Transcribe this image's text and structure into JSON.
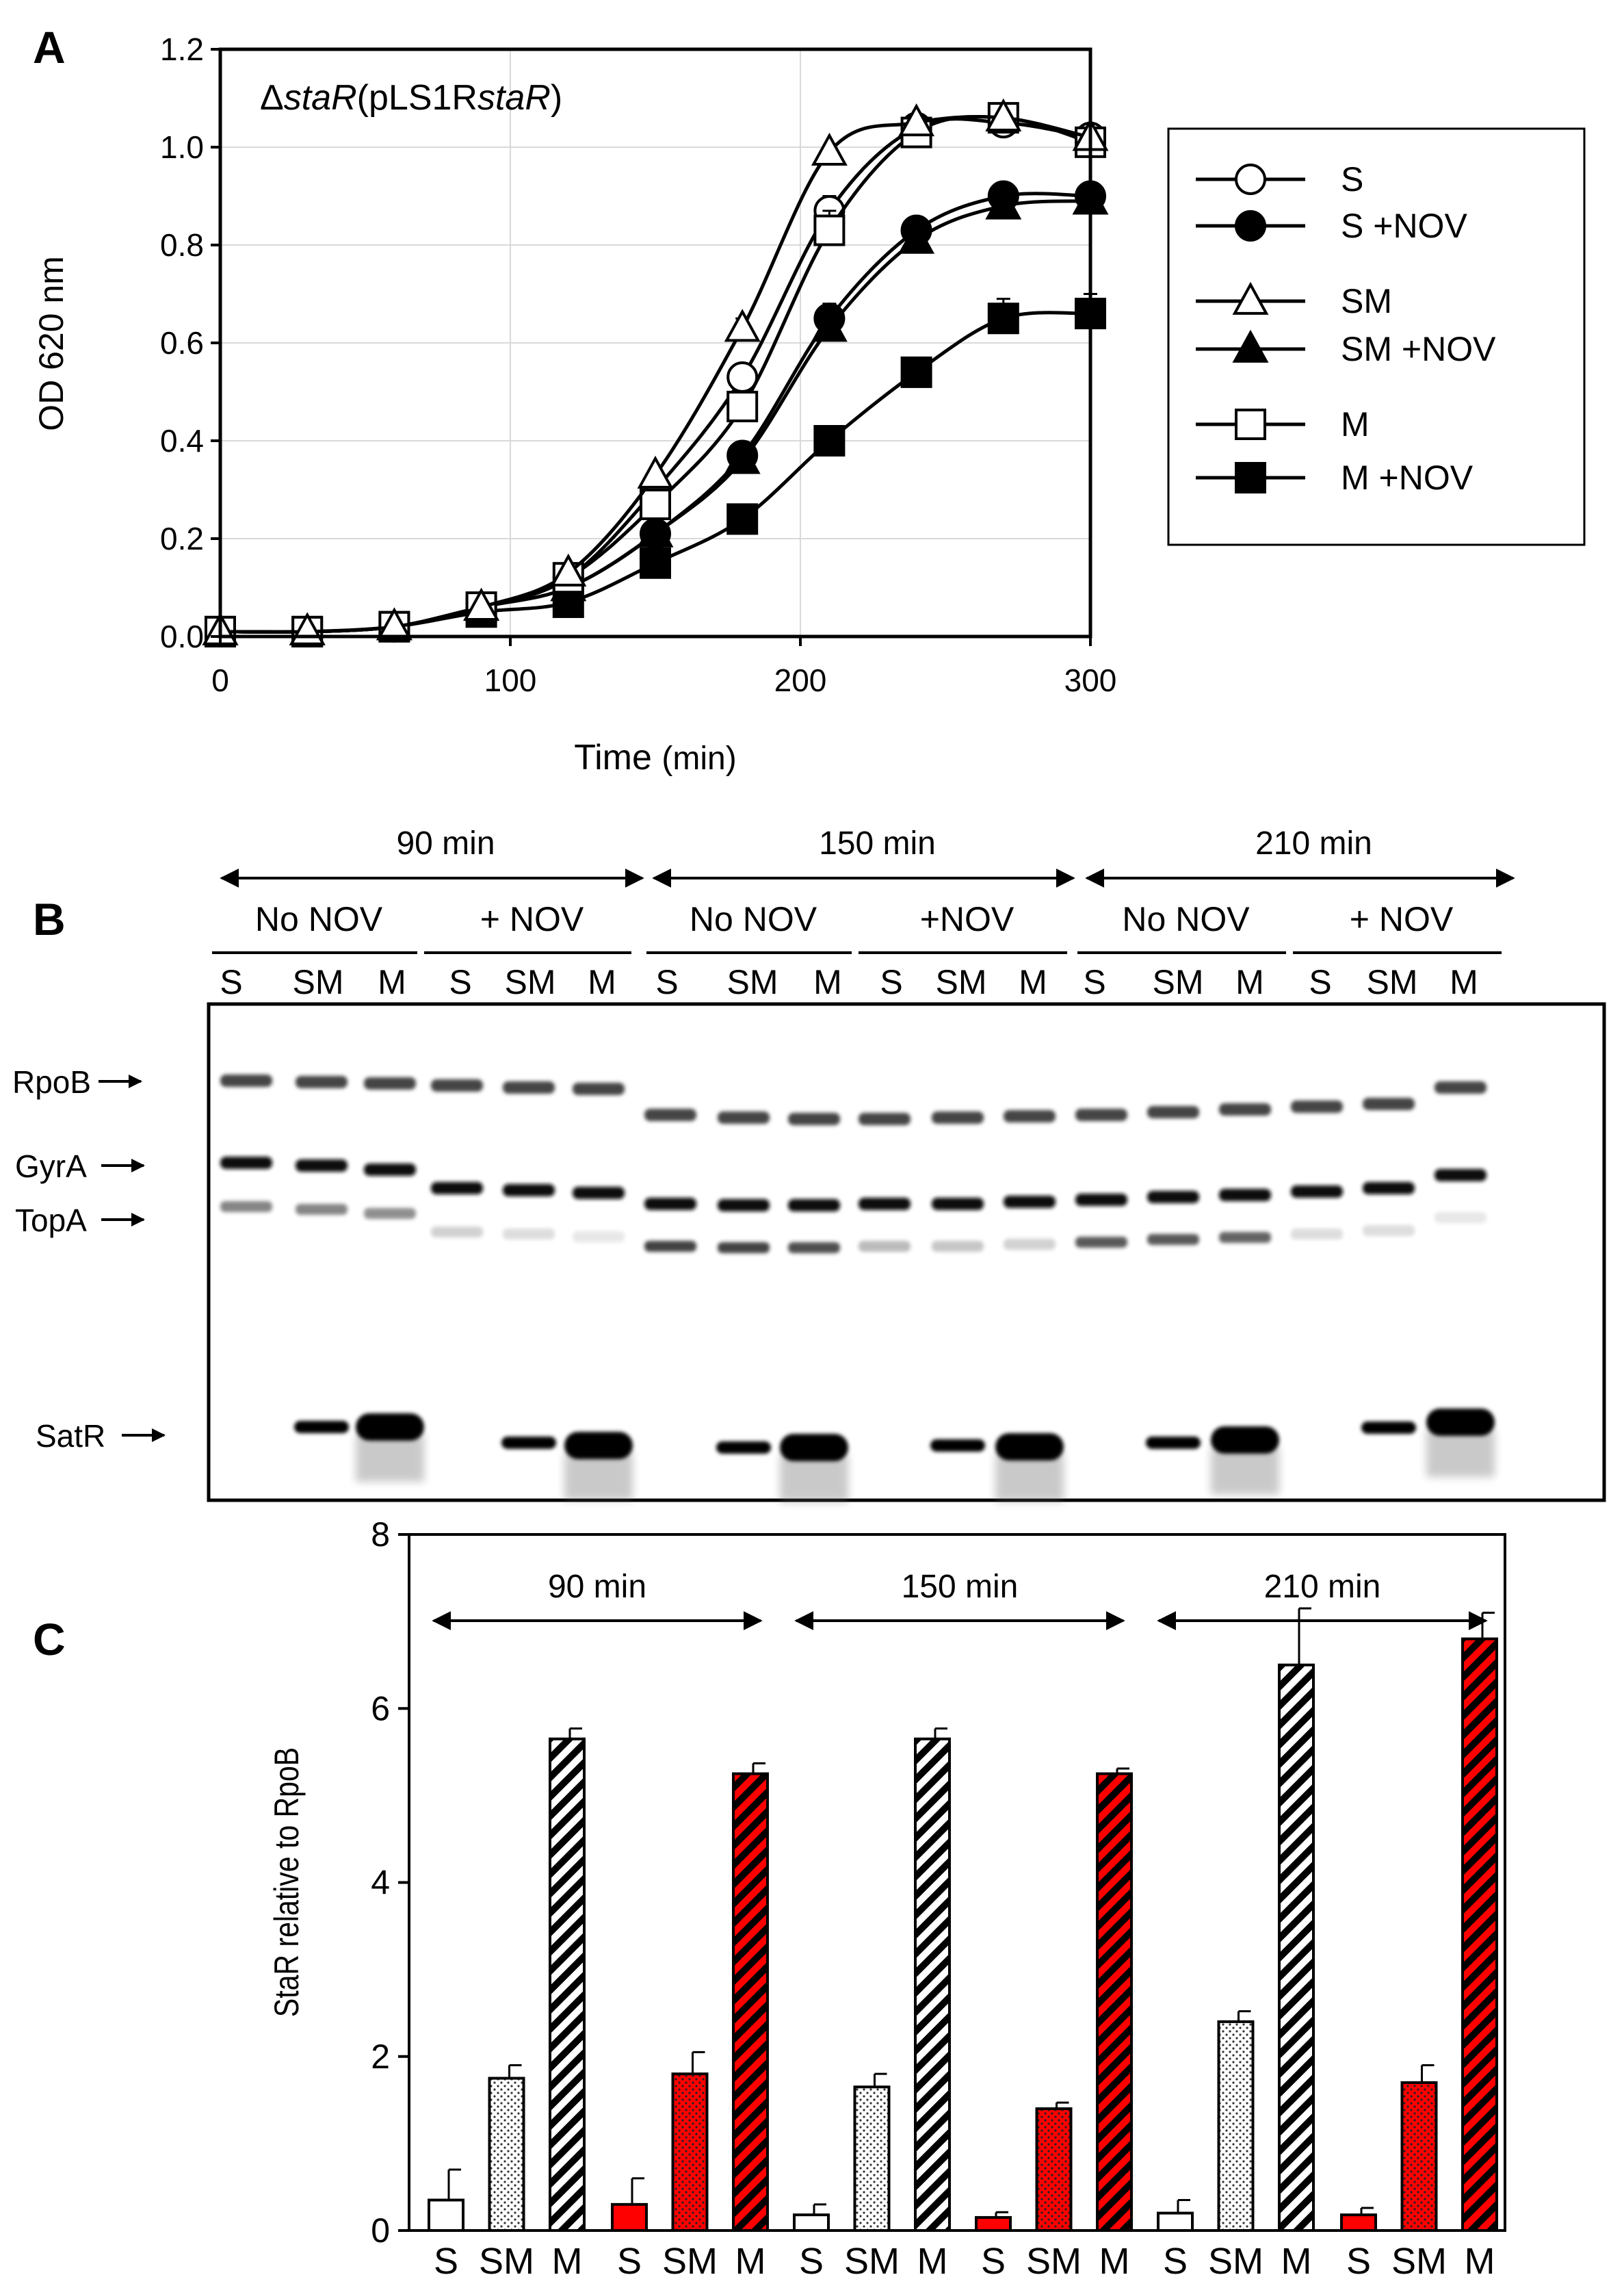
{
  "panels": {
    "a": "A",
    "b": "B",
    "c": "C"
  },
  "chart_data": [
    {
      "type": "line",
      "title": "ΔstaR(pLS1RstaR)",
      "title_parts": [
        "Δ",
        "staR",
        "(pLS1R",
        "staR",
        ")"
      ],
      "xlabel": "Time (min)",
      "xlabel_main": "Time",
      "xlabel_unit": "(min)",
      "ylabel": "OD 620 nm",
      "xlim": [
        0,
        300
      ],
      "ylim": [
        0,
        1.2
      ],
      "xticks": [
        0,
        100,
        200,
        300
      ],
      "xtick_labels": [
        "0",
        "100",
        "200",
        "300"
      ],
      "yticks": [
        0,
        0.2,
        0.4,
        0.6,
        0.8,
        1.0,
        1.2
      ],
      "ytick_labels": [
        "0.0",
        "0.2",
        "0.4",
        "0.6",
        "0.8",
        "1.0",
        "1.2"
      ],
      "grid": true,
      "legend_position": "right",
      "x": [
        0,
        30,
        60,
        90,
        120,
        150,
        180,
        210,
        240,
        270,
        300
      ],
      "series": [
        {
          "name": "S",
          "marker": "circle",
          "filled": false,
          "values": [
            0.01,
            0.01,
            0.02,
            0.06,
            0.12,
            0.3,
            0.53,
            0.87,
            1.04,
            1.05,
            1.02
          ],
          "errors": [
            0,
            0,
            0,
            0,
            0,
            0,
            0.02,
            0.03,
            0.01,
            0.01,
            0.01
          ]
        },
        {
          "name": "S +NOV",
          "marker": "circle",
          "filled": true,
          "values": [
            0.01,
            0.01,
            0.02,
            0.06,
            0.1,
            0.21,
            0.37,
            0.65,
            0.83,
            0.9,
            0.9
          ],
          "errors": [
            0,
            0,
            0,
            0,
            0,
            0,
            0.02,
            0.03,
            0.02,
            0.01,
            0.02
          ]
        },
        {
          "name": "SM",
          "marker": "triangle",
          "filled": false,
          "values": [
            0.01,
            0.01,
            0.02,
            0.06,
            0.13,
            0.33,
            0.63,
            0.99,
            1.05,
            1.06,
            1.02
          ],
          "errors": [
            0,
            0,
            0,
            0,
            0,
            0,
            0.02,
            0.01,
            0.01,
            0.01,
            0.01
          ]
        },
        {
          "name": "SM +NOV",
          "marker": "triangle",
          "filled": true,
          "values": [
            0.01,
            0.01,
            0.02,
            0.06,
            0.1,
            0.21,
            0.36,
            0.63,
            0.81,
            0.88,
            0.89
          ],
          "errors": [
            0,
            0,
            0,
            0,
            0,
            0,
            0.01,
            0.02,
            0.02,
            0.01,
            0.01
          ]
        },
        {
          "name": "M",
          "marker": "square",
          "filled": false,
          "values": [
            0.01,
            0.01,
            0.02,
            0.06,
            0.12,
            0.27,
            0.47,
            0.83,
            1.03,
            1.06,
            1.01
          ],
          "errors": [
            0,
            0,
            0,
            0,
            0,
            0,
            0.02,
            0.04,
            0.01,
            0.01,
            0.01
          ]
        },
        {
          "name": "M +NOV",
          "marker": "square",
          "filled": true,
          "values": [
            0.01,
            0.01,
            0.02,
            0.05,
            0.07,
            0.15,
            0.24,
            0.4,
            0.54,
            0.65,
            0.66
          ],
          "errors": [
            0,
            0,
            0,
            0,
            0,
            0,
            0,
            0.02,
            0.01,
            0.04,
            0.04
          ]
        }
      ]
    },
    {
      "type": "bar",
      "title": "",
      "xlabel": "",
      "ylabel": "StaR relative to RpoB",
      "ylim": [
        0,
        8
      ],
      "yticks": [
        0,
        2,
        4,
        6,
        8
      ],
      "ytick_labels": [
        "0",
        "2",
        "4",
        "6",
        "8"
      ],
      "time_labels": [
        "90 min",
        "150 min",
        "210 min"
      ],
      "categories": [
        "S",
        "SM",
        "M",
        "S",
        "SM",
        "M",
        "S",
        "SM",
        "M",
        "S",
        "SM",
        "M",
        "S",
        "SM",
        "M",
        "S",
        "SM",
        "M"
      ],
      "groups": [
        {
          "time": "90 min",
          "condition": "No NOV",
          "color": "#ffffff"
        },
        {
          "time": "90 min",
          "condition": "+NOV",
          "color": "#ff0000"
        },
        {
          "time": "150 min",
          "condition": "No NOV",
          "color": "#ffffff"
        },
        {
          "time": "150 min",
          "condition": "+NOV",
          "color": "#ff0000"
        },
        {
          "time": "210 min",
          "condition": "No NOV",
          "color": "#ffffff"
        },
        {
          "time": "210 min",
          "condition": "+NOV",
          "color": "#ff0000"
        }
      ],
      "patterns": [
        "plain",
        "dots",
        "stripes"
      ],
      "values": [
        0.35,
        1.75,
        5.65,
        0.3,
        1.8,
        5.25,
        0.18,
        1.65,
        5.65,
        0.15,
        1.4,
        5.25,
        0.2,
        2.4,
        6.5,
        0.18,
        1.7,
        6.8
      ],
      "errors": [
        0.35,
        0.15,
        0.12,
        0.3,
        0.25,
        0.12,
        0.12,
        0.15,
        0.12,
        0.06,
        0.07,
        0.06,
        0.15,
        0.12,
        0.65,
        0.08,
        0.2,
        0.3
      ]
    }
  ],
  "blot": {
    "time_labels": [
      "90 min",
      "150 min",
      "210 min"
    ],
    "condition_labels": [
      "No NOV",
      "+ NOV",
      "No NOV",
      "+NOV",
      "No NOV",
      "+ NOV"
    ],
    "lane_labels": [
      "S",
      "SM",
      "M",
      "S",
      "SM",
      "M",
      "S",
      "SM",
      "M",
      "S",
      "SM",
      "M",
      "S",
      "SM",
      "M",
      "S",
      "SM",
      "M"
    ],
    "protein_labels": [
      "RpoB",
      "GyrA",
      "TopA",
      "SatR"
    ]
  }
}
